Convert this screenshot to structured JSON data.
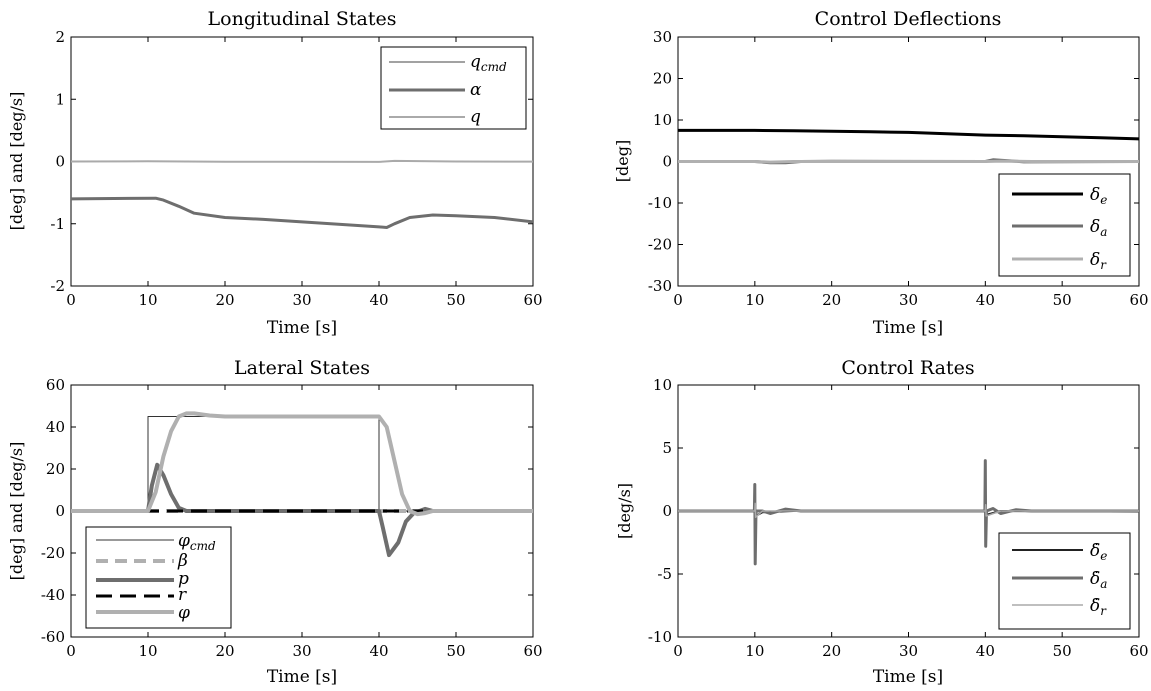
{
  "chart_data": [
    {
      "type": "line",
      "title": "Longitudinal States",
      "xlabel": "Time [s]",
      "ylabel": "[deg] and [deg/s]",
      "xlim": [
        0,
        60
      ],
      "ylim": [
        -2,
        2
      ],
      "xticks": [
        0,
        10,
        20,
        30,
        40,
        50,
        60
      ],
      "yticks": [
        -2,
        -1,
        0,
        1,
        2
      ],
      "legend": "top-right",
      "grid": false,
      "series": [
        {
          "name": "q_cmd",
          "color": "#444444",
          "dash": "",
          "points": [
            [
              0,
              0
            ],
            [
              60,
              0
            ]
          ]
        },
        {
          "name": "α",
          "color": "#6e6e6e",
          "dash": "",
          "points": [
            [
              0,
              -0.6
            ],
            [
              11,
              -0.59
            ],
            [
              12,
              -0.62
            ],
            [
              14,
              -0.72
            ],
            [
              16,
              -0.83
            ],
            [
              20,
              -0.9
            ],
            [
              25,
              -0.93
            ],
            [
              30,
              -0.97
            ],
            [
              35,
              -1.01
            ],
            [
              40,
              -1.05
            ],
            [
              41,
              -1.06
            ],
            [
              42,
              -1.0
            ],
            [
              44,
              -0.9
            ],
            [
              47,
              -0.86
            ],
            [
              50,
              -0.87
            ],
            [
              55,
              -0.9
            ],
            [
              60,
              -0.97
            ]
          ]
        },
        {
          "name": "q",
          "color": "#aaaaaa",
          "dash": "",
          "points": [
            [
              0,
              0
            ],
            [
              10,
              0.003
            ],
            [
              20,
              -0.005
            ],
            [
              30,
              -0.003
            ],
            [
              40,
              -0.006
            ],
            [
              42,
              0.01
            ],
            [
              50,
              0
            ],
            [
              60,
              -0.002
            ]
          ]
        }
      ]
    },
    {
      "type": "line",
      "title": "Control Deflections",
      "xlabel": "Time [s]",
      "ylabel": "[deg]",
      "xlim": [
        0,
        60
      ],
      "ylim": [
        -30,
        30
      ],
      "xticks": [
        0,
        10,
        20,
        30,
        40,
        50,
        60
      ],
      "yticks": [
        -30,
        -20,
        -10,
        0,
        10,
        20,
        30
      ],
      "legend": "bottom-right",
      "grid": false,
      "series": [
        {
          "name": "δ_e",
          "color": "#000000",
          "dash": "",
          "points": [
            [
              0,
              7.5
            ],
            [
              10,
              7.5
            ],
            [
              15,
              7.4
            ],
            [
              20,
              7.3
            ],
            [
              25,
              7.15
            ],
            [
              30,
              7.0
            ],
            [
              35,
              6.7
            ],
            [
              40,
              6.35
            ],
            [
              45,
              6.2
            ],
            [
              50,
              5.95
            ],
            [
              55,
              5.7
            ],
            [
              60,
              5.45
            ]
          ]
        },
        {
          "name": "δ_a",
          "color": "#6e6e6e",
          "dash": "",
          "points": [
            [
              0,
              0
            ],
            [
              10,
              0
            ],
            [
              12,
              -0.3
            ],
            [
              14,
              -0.3
            ],
            [
              16,
              0
            ],
            [
              20,
              0.05
            ],
            [
              40,
              0
            ],
            [
              41,
              0.4
            ],
            [
              43,
              0.2
            ],
            [
              45,
              -0.1
            ],
            [
              60,
              0
            ]
          ]
        },
        {
          "name": "δ_r",
          "color": "#b0b0b0",
          "dash": "",
          "points": [
            [
              0,
              0
            ],
            [
              10,
              0
            ],
            [
              12,
              -0.15
            ],
            [
              15,
              0
            ],
            [
              40,
              0
            ],
            [
              42,
              0.1
            ],
            [
              46,
              0
            ],
            [
              60,
              0
            ]
          ]
        }
      ]
    },
    {
      "type": "line",
      "title": "Lateral States",
      "xlabel": "Time [s]",
      "ylabel": "[deg] and [deg/s]",
      "xlim": [
        0,
        60
      ],
      "ylim": [
        -60,
        60
      ],
      "xticks": [
        0,
        10,
        20,
        30,
        40,
        50,
        60
      ],
      "yticks": [
        -60,
        -40,
        -20,
        0,
        20,
        40,
        60
      ],
      "legend": "bottom-left",
      "grid": false,
      "series": [
        {
          "name": "φ_cmd",
          "color": "#333333",
          "dash": "",
          "points": [
            [
              0,
              0
            ],
            [
              10,
              0
            ],
            [
              10,
              45
            ],
            [
              40,
              45
            ],
            [
              40,
              0
            ],
            [
              60,
              0
            ]
          ]
        },
        {
          "name": "β",
          "color": "#b0b0b0",
          "dash": "12 7",
          "points": [
            [
              0,
              0
            ],
            [
              60,
              0
            ]
          ]
        },
        {
          "name": "p",
          "color": "#6e6e6e",
          "dash": "",
          "points": [
            [
              0,
              0
            ],
            [
              10,
              0
            ],
            [
              10.5,
              12
            ],
            [
              11.2,
              22
            ],
            [
              12,
              17
            ],
            [
              13,
              8
            ],
            [
              14,
              1.5
            ],
            [
              15,
              0
            ],
            [
              40,
              0
            ],
            [
              40.5,
              -8
            ],
            [
              41.3,
              -21
            ],
            [
              42.5,
              -15
            ],
            [
              43.5,
              -5
            ],
            [
              44.5,
              -1
            ],
            [
              46,
              1
            ],
            [
              47,
              0
            ],
            [
              60,
              0
            ]
          ]
        },
        {
          "name": "r",
          "color": "#000000",
          "dash": "16 8",
          "points": [
            [
              0,
              0
            ],
            [
              60,
              0
            ]
          ]
        },
        {
          "name": "φ",
          "color": "#b0b0b0",
          "dash": "",
          "points": [
            [
              0,
              0
            ],
            [
              10,
              0
            ],
            [
              11,
              9
            ],
            [
              12,
              26
            ],
            [
              13,
              38
            ],
            [
              14,
              45
            ],
            [
              15,
              46.5
            ],
            [
              16,
              46.5
            ],
            [
              18,
              45.5
            ],
            [
              20,
              45
            ],
            [
              40,
              45
            ],
            [
              41,
              40
            ],
            [
              42,
              24
            ],
            [
              43,
              8
            ],
            [
              44,
              0
            ],
            [
              45,
              -1.5
            ],
            [
              46,
              -1
            ],
            [
              47,
              0
            ],
            [
              60,
              0
            ]
          ]
        }
      ]
    },
    {
      "type": "line",
      "title": "Control Rates",
      "xlabel": "Time [s]",
      "ylabel": "[deg/s]",
      "xlim": [
        0,
        60
      ],
      "ylim": [
        -10,
        10
      ],
      "xticks": [
        0,
        10,
        20,
        30,
        40,
        50,
        60
      ],
      "yticks": [
        -10,
        -5,
        0,
        5,
        10
      ],
      "legend": "bottom-right",
      "grid": false,
      "series": [
        {
          "name": "δ̇_e",
          "color": "#222222",
          "dash": "",
          "points": [
            [
              0,
              0
            ],
            [
              9.9,
              0
            ],
            [
              10,
              0.4
            ],
            [
              10.1,
              -0.4
            ],
            [
              11,
              -0.1
            ],
            [
              15,
              0
            ],
            [
              39.9,
              0
            ],
            [
              40,
              0.3
            ],
            [
              40.1,
              -0.3
            ],
            [
              42,
              0
            ],
            [
              60,
              -0.05
            ]
          ]
        },
        {
          "name": "δ̇_a",
          "color": "#6e6e6e",
          "dash": "",
          "points": [
            [
              0,
              0
            ],
            [
              9.95,
              0
            ],
            [
              10,
              2.1
            ],
            [
              10.05,
              -4.2
            ],
            [
              10.15,
              0
            ],
            [
              11,
              0
            ],
            [
              12,
              -0.2
            ],
            [
              14,
              0.15
            ],
            [
              16,
              0
            ],
            [
              39.95,
              0
            ],
            [
              40,
              4.0
            ],
            [
              40.05,
              -2.8
            ],
            [
              40.15,
              0
            ],
            [
              41,
              0.2
            ],
            [
              42,
              -0.2
            ],
            [
              44,
              0.1
            ],
            [
              46,
              0
            ],
            [
              60,
              0
            ]
          ]
        },
        {
          "name": "δ̇_r",
          "color": "#aaaaaa",
          "dash": "",
          "points": [
            [
              0,
              0
            ],
            [
              10,
              0
            ],
            [
              10.05,
              0.6
            ],
            [
              10.1,
              -0.5
            ],
            [
              11,
              0
            ],
            [
              40,
              0
            ],
            [
              40.05,
              0.5
            ],
            [
              40.1,
              -0.4
            ],
            [
              42,
              0
            ],
            [
              60,
              0
            ]
          ]
        }
      ]
    }
  ]
}
